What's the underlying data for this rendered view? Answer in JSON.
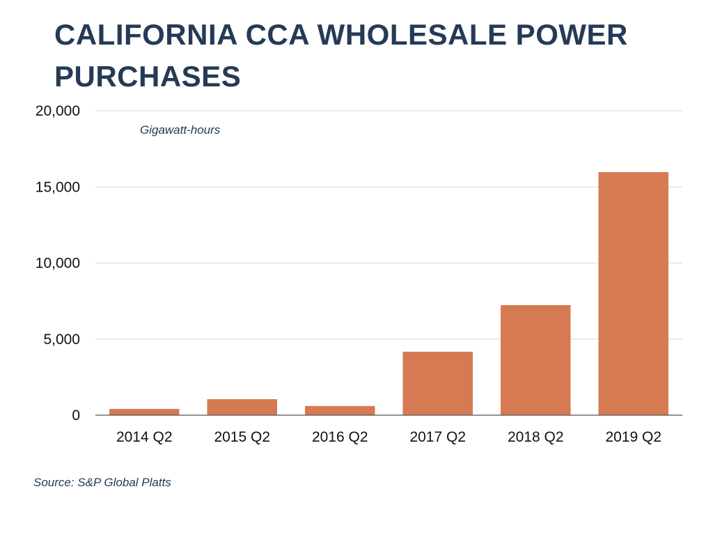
{
  "chart_data": {
    "type": "bar",
    "title": "CALIFORNIA CCA WHOLESALE POWER PURCHASES",
    "unit_label": "Gigawatt-hours",
    "source": "Source: S&P Global Platts",
    "categories": [
      "2014 Q2",
      "2015 Q2",
      "2016 Q2",
      "2017 Q2",
      "2018 Q2",
      "2019 Q2"
    ],
    "values": [
      410,
      1050,
      600,
      4170,
      7230,
      15970
    ],
    "ylim": [
      0,
      20000
    ],
    "yticks": [
      0,
      5000,
      10000,
      15000,
      20000
    ],
    "ytick_labels": [
      "0",
      "5,000",
      "10,000",
      "15,000",
      "20,000"
    ],
    "xlabel": "",
    "ylabel": "Gigawatt-hours",
    "grid": true,
    "legend": "none",
    "colors": {
      "bar": "#d57a52",
      "title": "#253a56",
      "grid": "#d9d9d9",
      "axis": "#555555"
    }
  }
}
